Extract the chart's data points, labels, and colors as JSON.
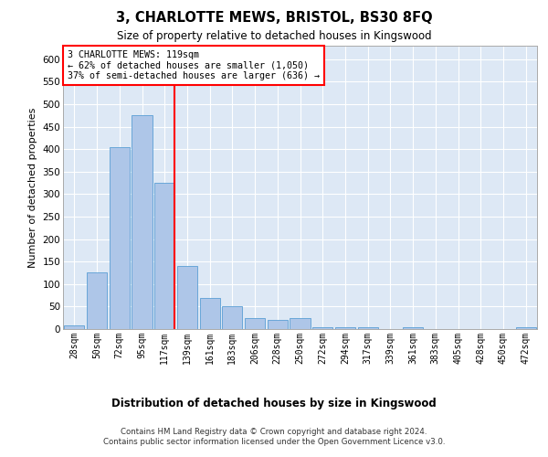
{
  "title": "3, CHARLOTTE MEWS, BRISTOL, BS30 8FQ",
  "subtitle": "Size of property relative to detached houses in Kingswood",
  "xlabel": "Distribution of detached houses by size in Kingswood",
  "ylabel": "Number of detached properties",
  "bar_labels": [
    "28sqm",
    "50sqm",
    "72sqm",
    "95sqm",
    "117sqm",
    "139sqm",
    "161sqm",
    "183sqm",
    "206sqm",
    "228sqm",
    "250sqm",
    "272sqm",
    "294sqm",
    "317sqm",
    "339sqm",
    "361sqm",
    "383sqm",
    "405sqm",
    "428sqm",
    "450sqm",
    "472sqm"
  ],
  "bar_values": [
    8,
    125,
    405,
    475,
    325,
    140,
    70,
    50,
    25,
    20,
    25,
    5,
    5,
    5,
    0,
    5,
    0,
    0,
    0,
    0,
    5
  ],
  "bar_color": "#aec6e8",
  "bar_edge_color": "#5a9fd4",
  "background_color": "#dde8f5",
  "grid_color": "#ffffff",
  "property_bin_index": 4,
  "annotation_line1": "3 CHARLOTTE MEWS: 119sqm",
  "annotation_line2": "← 62% of detached houses are smaller (1,050)",
  "annotation_line3": "37% of semi-detached houses are larger (636) →",
  "ylim": [
    0,
    630
  ],
  "yticks": [
    0,
    50,
    100,
    150,
    200,
    250,
    300,
    350,
    400,
    450,
    500,
    550,
    600
  ],
  "footer1": "Contains HM Land Registry data © Crown copyright and database right 2024.",
  "footer2": "Contains public sector information licensed under the Open Government Licence v3.0."
}
